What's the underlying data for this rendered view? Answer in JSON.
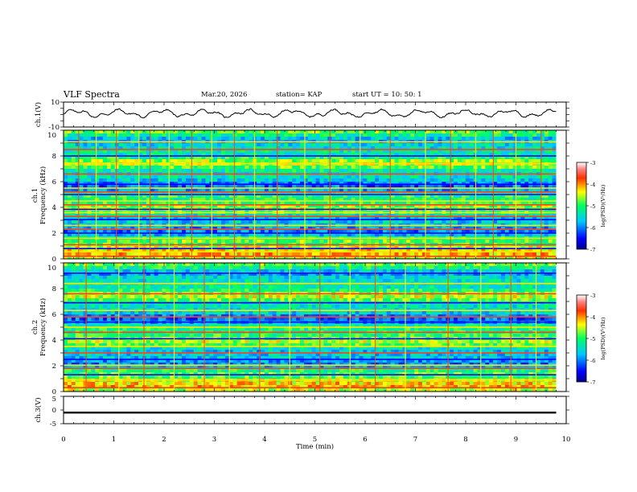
{
  "chart_data": {
    "type": "heatmap",
    "title": "VLF Spectra",
    "header": {
      "date": "Mar.20, 2026",
      "station_text": "station= KAP",
      "start_text": "start  UT =   10: 50: 1"
    },
    "x_axis": {
      "label": "Time  (min)",
      "range": [
        0,
        10
      ],
      "ticks": [
        "0",
        "1",
        "2",
        "3",
        "4",
        "5",
        "6",
        "7",
        "8",
        "9",
        "10"
      ],
      "data_end": 9.8
    },
    "ch1_waveform": {
      "ylabel": "ch.1(V)",
      "range": [
        -10,
        10
      ],
      "ticks": [
        "10",
        "-10"
      ],
      "typical_range": [
        -4,
        5
      ]
    },
    "ch1_spectrogram": {
      "ylabel_line1": "ch.1",
      "ylabel_line2": "Frequency (kHz)",
      "range_khz": [
        0,
        10
      ],
      "ticks": [
        "0",
        "2",
        "4",
        "6",
        "8",
        "10"
      ],
      "band_khz": [
        0.2,
        0.55,
        0.8,
        1.1,
        1.6,
        2.0,
        2.3,
        2.6,
        3.05,
        3.3,
        3.6,
        3.85,
        4.2,
        4.5,
        5.0,
        5.2,
        5.5,
        5.8,
        6.6,
        7.4,
        8.0,
        8.5,
        9.1
      ],
      "spike_min": [
        0.3,
        0.65,
        1.05,
        1.5,
        1.72,
        2.1,
        2.55,
        2.95,
        3.4,
        3.8,
        4.25,
        4.8,
        5.3,
        5.9,
        6.5,
        7.2,
        7.7,
        8.2,
        8.55,
        9.0,
        9.5
      ]
    },
    "ch2_spectrogram": {
      "ylabel_line1": "ch.2",
      "ylabel_line2": "Frequency (kHz)",
      "range_khz": [
        0,
        10
      ],
      "ticks": [
        "0",
        "2",
        "4",
        "6",
        "8",
        "10"
      ],
      "band_khz": [
        0.3,
        0.9,
        1.3,
        1.8,
        2.05,
        2.5,
        3.0,
        3.5,
        4.1,
        4.6,
        5.0,
        5.4,
        5.8,
        6.3,
        6.9,
        7.6,
        8.4,
        9.2
      ],
      "spike_min": [
        0.45,
        1.1,
        1.6,
        2.2,
        2.8,
        3.3,
        3.9,
        4.5,
        5.1,
        5.7,
        6.2,
        6.8,
        7.65,
        8.3,
        8.9,
        9.4
      ]
    },
    "ch3_waveform": {
      "ylabel": "ch.3(V)",
      "range": [
        -5,
        5
      ],
      "ticks": [
        "5",
        "0",
        "-5"
      ],
      "level": [
        -1.3,
        -0.6
      ]
    },
    "colorbar": {
      "label": "log(PSD)(V²/Hz)",
      "range": [
        -7,
        -3
      ],
      "ticks": [
        "-3",
        "-4",
        "-5",
        "-6",
        "-7"
      ]
    }
  }
}
